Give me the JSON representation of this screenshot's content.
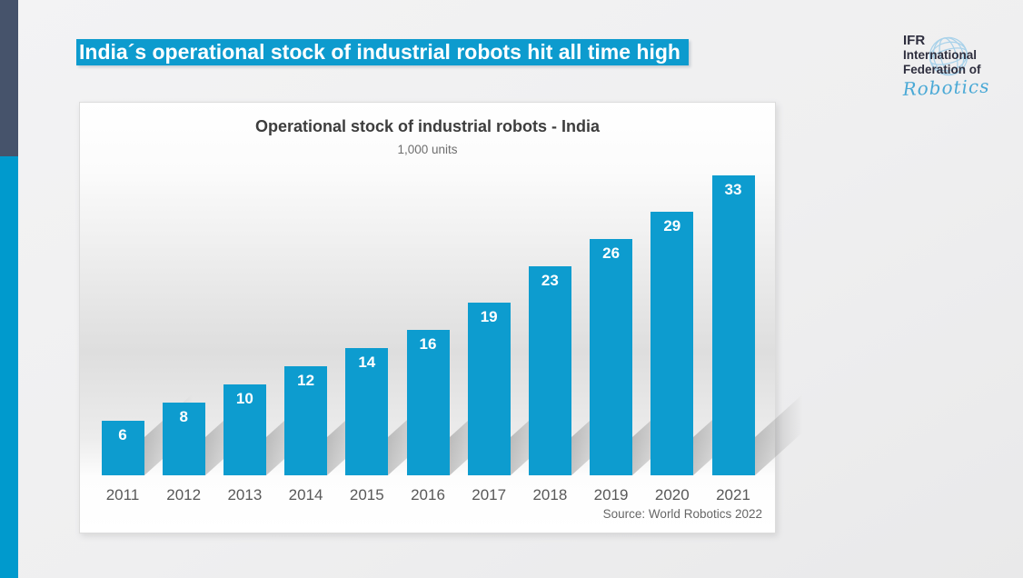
{
  "banner": {
    "title": "India´s operational stock of industrial robots hit all time high"
  },
  "logo": {
    "acronym": "IFR",
    "line2": "International",
    "line3": "Federation of",
    "script": "Robotics"
  },
  "chart": {
    "title": "Operational stock of industrial robots - India",
    "subtitle": "1,000 units",
    "source": "Source: World Robotics 2022"
  },
  "chart_data": {
    "type": "bar",
    "title": "Operational stock of industrial robots - India",
    "subtitle": "1,000 units",
    "source": "Source: World Robotics 2022",
    "categories": [
      "2011",
      "2012",
      "2013",
      "2014",
      "2015",
      "2016",
      "2017",
      "2018",
      "2019",
      "2020",
      "2021"
    ],
    "values": [
      6,
      8,
      10,
      12,
      14,
      16,
      19,
      23,
      26,
      29,
      33
    ],
    "xlabel": "",
    "ylabel": "1,000 units",
    "ylim": [
      0,
      35
    ],
    "grid": false,
    "legend": "none",
    "value_labels": "inside top of bars, white bold",
    "bar_color": "#0d9ccf"
  },
  "colors": {
    "accent_cyan": "#0d9bce",
    "bar": "#0d9ccf",
    "rail_dark": "#46536b",
    "rail_cyan": "#009acd",
    "banner_text": "#ffffff",
    "chart_title_text": "#3d3d3d",
    "axis_text": "#595959",
    "source_text": "#666666",
    "logo_text": "#2e2e3e",
    "logo_script": "#4aa9d6",
    "globe_line": "#a9d2ea"
  }
}
